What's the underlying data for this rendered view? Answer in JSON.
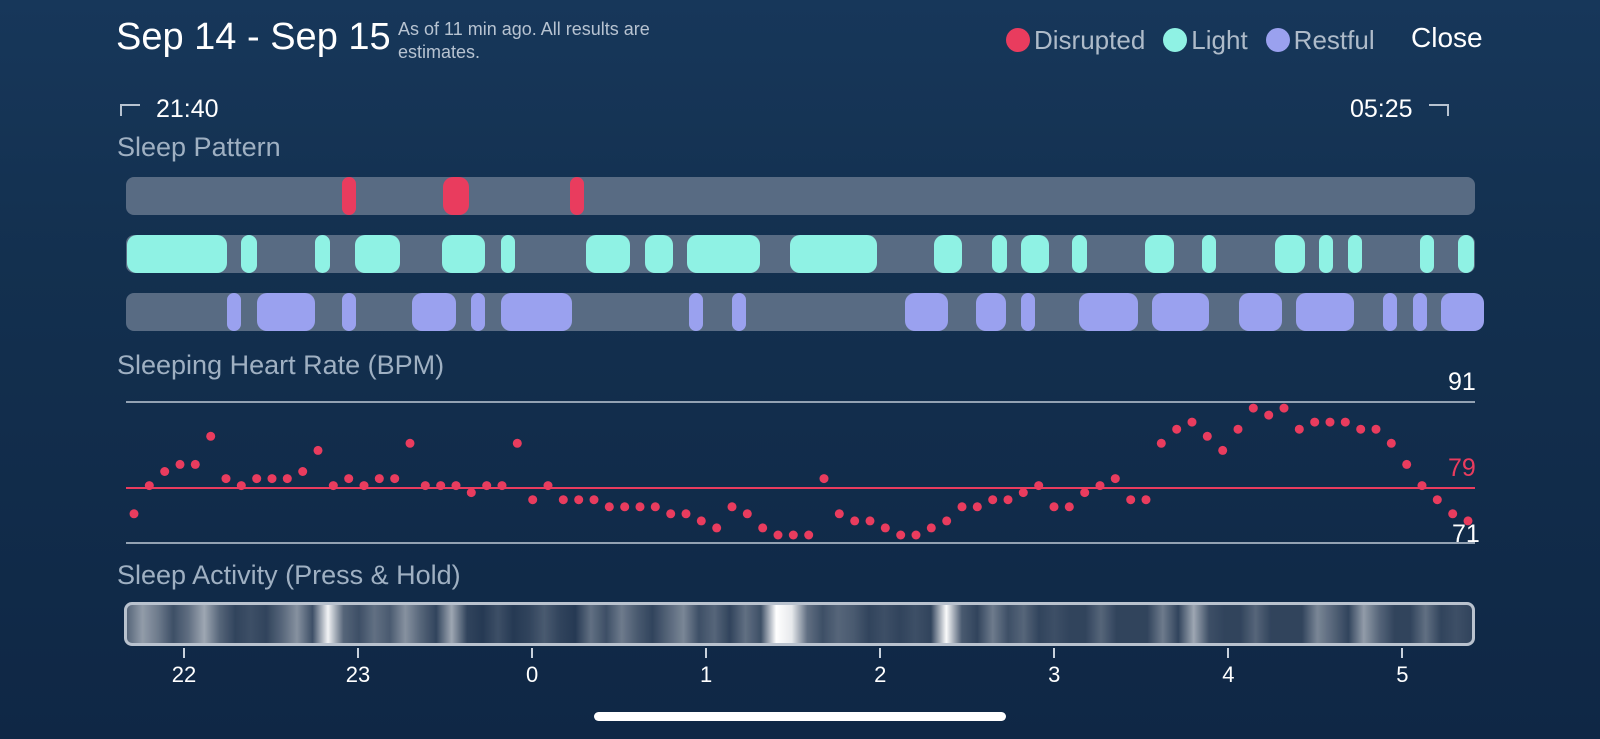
{
  "header": {
    "date_range": "Sep 14 - Sep 15",
    "subtitle": "As of 11 min ago. All results are estimates.",
    "close_label": "Close"
  },
  "legend": [
    {
      "label": "Disrupted",
      "color": "#e93c5e"
    },
    {
      "label": "Light",
      "color": "#8ff2e4"
    },
    {
      "label": "Restful",
      "color": "#9aa1ef"
    }
  ],
  "time_range": {
    "start": "21:40",
    "end": "05:25"
  },
  "sections": {
    "sleep_pattern": "Sleep Pattern",
    "heart_rate": "Sleeping Heart Rate (BPM)",
    "activity": "Sleep Activity (Press & Hold)"
  },
  "sleep_pattern": {
    "start_hour": 21.667,
    "end_hour": 29.417,
    "disrupted": [
      [
        22.91,
        22.99
      ],
      [
        23.49,
        23.64
      ],
      [
        24.22,
        24.3
      ]
    ],
    "light": [
      [
        21.67,
        22.25
      ],
      [
        22.33,
        22.42
      ],
      [
        22.75,
        22.84
      ],
      [
        22.98,
        23.24
      ],
      [
        23.48,
        23.73
      ],
      [
        23.82,
        23.9
      ],
      [
        24.31,
        24.56
      ],
      [
        24.65,
        24.81
      ],
      [
        24.89,
        25.31
      ],
      [
        25.48,
        25.98
      ],
      [
        26.31,
        26.47
      ],
      [
        26.64,
        26.73
      ],
      [
        26.81,
        26.97
      ],
      [
        27.1,
        27.19
      ],
      [
        27.52,
        27.69
      ],
      [
        27.85,
        27.93
      ],
      [
        28.27,
        28.44
      ],
      [
        28.52,
        28.6
      ],
      [
        28.69,
        28.77
      ],
      [
        29.1,
        29.18
      ],
      [
        29.32,
        29.41
      ]
    ],
    "restful": [
      [
        22.25,
        22.33
      ],
      [
        22.42,
        22.75
      ],
      [
        22.91,
        22.99
      ],
      [
        23.31,
        23.56
      ],
      [
        23.65,
        23.73
      ],
      [
        23.82,
        24.23
      ],
      [
        24.9,
        24.98
      ],
      [
        25.15,
        25.23
      ],
      [
        26.14,
        26.39
      ],
      [
        26.55,
        26.72
      ],
      [
        26.81,
        26.89
      ],
      [
        27.14,
        27.48
      ],
      [
        27.56,
        27.89
      ],
      [
        28.06,
        28.31
      ],
      [
        28.39,
        28.72
      ],
      [
        28.89,
        28.97
      ],
      [
        29.06,
        29.14
      ],
      [
        29.22,
        29.47
      ]
    ]
  },
  "heart_rate": {
    "max_label": "91",
    "avg_label": "79",
    "min_label": "71",
    "max": 91,
    "avg": 79,
    "min": 71,
    "points": [
      75,
      79,
      81,
      82,
      82,
      86,
      80,
      79,
      80,
      80,
      80,
      81,
      84,
      79,
      80,
      79,
      80,
      80,
      85,
      79,
      79,
      79,
      78,
      79,
      79,
      85,
      77,
      79,
      77,
      77,
      77,
      76,
      76,
      76,
      76,
      75,
      75,
      74,
      73,
      76,
      75,
      73,
      72,
      72,
      72,
      80,
      75,
      74,
      74,
      73,
      72,
      72,
      73,
      74,
      76,
      76,
      77,
      77,
      78,
      79,
      76,
      76,
      78,
      79,
      80,
      77,
      77,
      85,
      87,
      88,
      86,
      84,
      87,
      90,
      89,
      90,
      87,
      88,
      88,
      88,
      87,
      87,
      85,
      82,
      79,
      77,
      75,
      74
    ],
    "axis_max": 91,
    "axis_min": 71
  },
  "activity": {
    "levels": [
      0.3,
      0.55,
      0.4,
      0.2,
      0.35,
      0.6,
      0.3,
      0.15,
      0.2,
      0.15,
      0.3,
      0.5,
      0.2,
      0.95,
      0.3,
      0.2,
      0.35,
      0.25,
      0.5,
      0.3,
      0.15,
      0.6,
      0.15,
      0.1,
      0.2,
      0.1,
      0.15,
      0.25,
      0.15,
      0.1,
      0.35,
      0.2,
      0.4,
      0.25,
      0.15,
      0.3,
      0.45,
      0.2,
      0.3,
      0.15,
      0.35,
      0.2,
      1.0,
      0.9,
      0.35,
      0.2,
      0.3,
      0.25,
      0.15,
      0.2,
      0.15,
      0.2,
      0.15,
      0.98,
      0.25,
      0.15,
      0.4,
      0.2,
      0.3,
      0.15,
      0.2,
      0.15,
      0.15,
      0.3,
      0.15,
      0.15,
      0.15,
      0.4,
      0.15,
      0.6,
      0.2,
      0.15,
      0.15,
      0.3,
      0.15,
      0.15,
      0.15,
      0.45,
      0.3,
      0.15,
      0.55,
      0.3,
      0.15,
      0.15,
      0.35,
      0.15,
      0.2,
      0.15
    ],
    "color": "#ffffff"
  },
  "axis_ticks": [
    "22",
    "23",
    "0",
    "1",
    "2",
    "3",
    "4",
    "5"
  ],
  "home_indicator": ""
}
